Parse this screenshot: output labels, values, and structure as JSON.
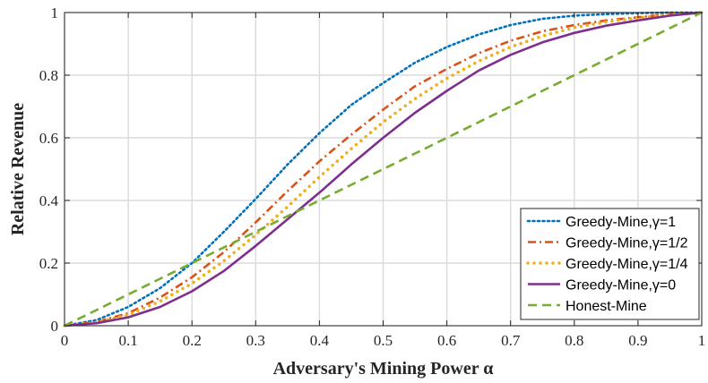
{
  "chart_data": {
    "type": "line",
    "xlabel": "Adversary's Mining Power α",
    "ylabel": "Relative Revenue",
    "xlim": [
      0,
      1
    ],
    "ylim": [
      0,
      1
    ],
    "grid": true,
    "legend_position": "bottom-right",
    "x_ticks": [
      "0",
      "0.1",
      "0.2",
      "0.3",
      "0.4",
      "0.5",
      "0.6",
      "0.7",
      "0.8",
      "0.9",
      "1"
    ],
    "y_ticks": [
      "0",
      "0.2",
      "0.4",
      "0.6",
      "0.8",
      "1"
    ],
    "x": [
      0,
      0.05,
      0.1,
      0.15,
      0.2,
      0.25,
      0.3,
      0.35,
      0.4,
      0.45,
      0.5,
      0.55,
      0.6,
      0.65,
      0.7,
      0.75,
      0.8,
      0.85,
      0.9,
      0.95,
      1
    ],
    "series": [
      {
        "name": "Greedy-Mine,γ=1",
        "color": "#0072BD",
        "style": "dotted",
        "values": [
          0,
          0.018,
          0.06,
          0.12,
          0.2,
          0.3,
          0.405,
          0.515,
          0.615,
          0.705,
          0.775,
          0.84,
          0.89,
          0.93,
          0.96,
          0.98,
          0.99,
          0.995,
          0.998,
          1.0,
          1.0
        ]
      },
      {
        "name": "Greedy-Mine,γ=1/2",
        "color": "#D95319",
        "style": "dashdot",
        "values": [
          0,
          0.012,
          0.04,
          0.09,
          0.155,
          0.235,
          0.33,
          0.43,
          0.525,
          0.61,
          0.69,
          0.765,
          0.82,
          0.87,
          0.91,
          0.94,
          0.96,
          0.975,
          0.985,
          0.995,
          1.0
        ]
      },
      {
        "name": "Greedy-Mine,γ=1/4",
        "color": "#EDB120",
        "style": "dots",
        "values": [
          0,
          0.01,
          0.035,
          0.078,
          0.135,
          0.207,
          0.29,
          0.38,
          0.475,
          0.565,
          0.65,
          0.725,
          0.79,
          0.845,
          0.89,
          0.925,
          0.952,
          0.97,
          0.983,
          0.993,
          1.0
        ]
      },
      {
        "name": "Greedy-Mine,γ=0",
        "color": "#7E2F8E",
        "style": "solid",
        "values": [
          0,
          0.008,
          0.027,
          0.06,
          0.11,
          0.175,
          0.255,
          0.34,
          0.425,
          0.515,
          0.6,
          0.68,
          0.75,
          0.815,
          0.865,
          0.905,
          0.935,
          0.958,
          0.975,
          0.99,
          1.0
        ]
      },
      {
        "name": "Honest-Mine",
        "color": "#77AC30",
        "style": "dashed",
        "values": [
          0,
          0.05,
          0.1,
          0.15,
          0.2,
          0.25,
          0.3,
          0.35,
          0.4,
          0.45,
          0.5,
          0.55,
          0.6,
          0.65,
          0.7,
          0.75,
          0.8,
          0.85,
          0.9,
          0.95,
          1.0
        ]
      }
    ]
  }
}
